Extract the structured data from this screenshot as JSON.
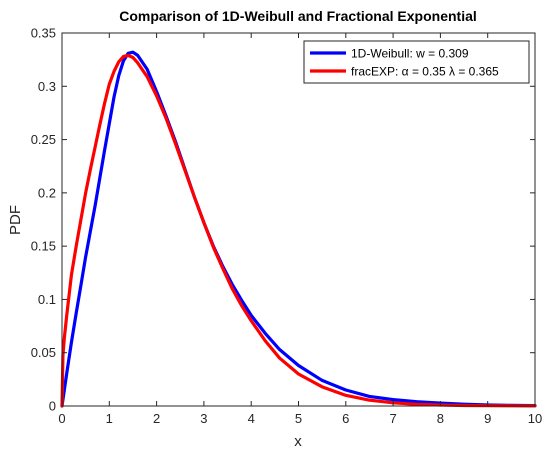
{
  "chart_data": {
    "type": "line",
    "title": "Comparison of 1D-Weibull and Fractional Exponential",
    "xlabel": "x",
    "ylabel": "PDF",
    "xlim": [
      0,
      10
    ],
    "ylim": [
      0,
      0.35
    ],
    "xticks": [
      0,
      1,
      2,
      3,
      4,
      5,
      6,
      7,
      8,
      9,
      10
    ],
    "yticks": [
      0,
      0.05,
      0.1,
      0.15,
      0.2,
      0.25,
      0.3,
      0.35
    ],
    "xtick_labels": [
      "0",
      "1",
      "2",
      "3",
      "4",
      "5",
      "6",
      "7",
      "8",
      "9",
      "10"
    ],
    "ytick_labels": [
      "0",
      "0.05",
      "0.1",
      "0.15",
      "0.2",
      "0.25",
      "0.3",
      "0.35"
    ],
    "grid": false,
    "box": true,
    "legend_position": "top-right",
    "series": [
      {
        "name": "1D-Weibull: w = 0.309",
        "color": "#0000ff",
        "x": [
          0,
          0.1,
          0.2,
          0.3,
          0.4,
          0.5,
          0.6,
          0.7,
          0.8,
          0.9,
          1.0,
          1.1,
          1.2,
          1.3,
          1.4,
          1.5,
          1.6,
          1.8,
          2.0,
          2.2,
          2.4,
          2.6,
          2.8,
          3.0,
          3.2,
          3.4,
          3.6,
          3.8,
          4.0,
          4.3,
          4.6,
          5.0,
          5.5,
          6.0,
          6.5,
          7.0,
          7.5,
          8.0,
          8.5,
          9.0,
          9.5,
          10.0
        ],
        "y": [
          0,
          0.0306,
          0.0599,
          0.0871,
          0.1133,
          0.14,
          0.164,
          0.188,
          0.214,
          0.24,
          0.265,
          0.29,
          0.31,
          0.324,
          0.331,
          0.332,
          0.329,
          0.316,
          0.295,
          0.272,
          0.248,
          0.222,
          0.196,
          0.172,
          0.15,
          0.131,
          0.114,
          0.099,
          0.085,
          0.068,
          0.053,
          0.038,
          0.024,
          0.015,
          0.009,
          0.006,
          0.004,
          0.0027,
          0.0017,
          0.001,
          0.0006,
          0.0004
        ]
      },
      {
        "name": "fracEXP: α = 0.35 λ = 0.365",
        "color": "#ff0000",
        "x": [
          0,
          0.02,
          0.05,
          0.1,
          0.2,
          0.3,
          0.4,
          0.5,
          0.6,
          0.7,
          0.8,
          0.9,
          1.0,
          1.1,
          1.2,
          1.3,
          1.4,
          1.5,
          1.6,
          1.8,
          2.0,
          2.2,
          2.4,
          2.6,
          2.8,
          3.0,
          3.2,
          3.4,
          3.6,
          3.8,
          4.0,
          4.3,
          4.6,
          5.0,
          5.5,
          6.0,
          6.5,
          7.0,
          7.5,
          8.0,
          8.5,
          9.0,
          9.5,
          10.0
        ],
        "y": [
          0,
          0.048,
          0.064,
          0.0851,
          0.1232,
          0.15,
          0.175,
          0.2,
          0.222,
          0.243,
          0.264,
          0.284,
          0.302,
          0.314,
          0.323,
          0.328,
          0.329,
          0.327,
          0.322,
          0.309,
          0.291,
          0.27,
          0.246,
          0.221,
          0.196,
          0.172,
          0.149,
          0.129,
          0.11,
          0.094,
          0.08,
          0.061,
          0.045,
          0.03,
          0.018,
          0.01,
          0.0055,
          0.003,
          0.0016,
          0.0009,
          0.0005,
          0.0003,
          0.0002,
          0.0001
        ]
      }
    ]
  }
}
